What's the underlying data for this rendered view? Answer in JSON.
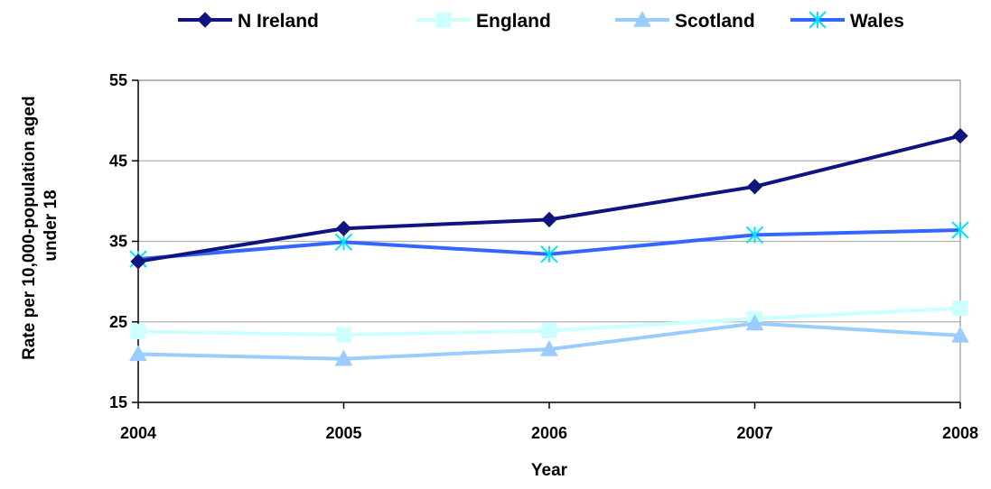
{
  "chart_data": {
    "type": "line",
    "title": "",
    "xlabel": "Year",
    "ylabel": "Rate per 10,000-population aged under 18",
    "ylabel_lines": [
      "Rate per 10,000-population aged",
      "under 18"
    ],
    "categories": [
      "2004",
      "2005",
      "2006",
      "2007",
      "2008"
    ],
    "ylim": [
      15,
      55
    ],
    "yticks": [
      15,
      25,
      35,
      45,
      55
    ],
    "grid": true,
    "legend_position": "top",
    "series": [
      {
        "name": "N Ireland",
        "values": [
          32.5,
          36.6,
          37.7,
          41.8,
          48.1
        ],
        "color": "#10147e",
        "marker": "diamond"
      },
      {
        "name": "England",
        "values": [
          23.8,
          23.4,
          23.9,
          25.4,
          26.7
        ],
        "color": "#ccffff",
        "marker": "square"
      },
      {
        "name": "Scotland",
        "values": [
          21.0,
          20.4,
          21.6,
          24.8,
          23.3
        ],
        "color": "#99ccff",
        "marker": "triangle"
      },
      {
        "name": "Wales",
        "values": [
          32.8,
          34.9,
          33.4,
          35.8,
          36.4
        ],
        "color": "#3366ff",
        "marker": "x"
      }
    ]
  }
}
